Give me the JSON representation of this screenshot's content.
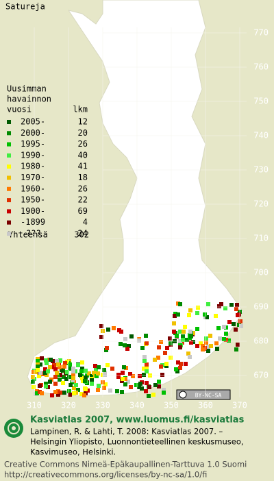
{
  "title": "Satureja",
  "legend": {
    "header": [
      "Uusimman",
      "havainnon",
      "vuosi"
    ],
    "count_header": "lkm",
    "rows": [
      {
        "label": "2005-",
        "count": 12,
        "color": "#005a00"
      },
      {
        "label": "2000-",
        "count": 20,
        "color": "#008a00"
      },
      {
        "label": "1995-",
        "count": 26,
        "color": "#00c000"
      },
      {
        "label": "1990-",
        "count": 40,
        "color": "#40ee40"
      },
      {
        "label": "1980-",
        "count": 41,
        "color": "#ffff00"
      },
      {
        "label": "1970-",
        "count": 18,
        "color": "#f0c000"
      },
      {
        "label": "1960-",
        "count": 26,
        "color": "#ff7a00"
      },
      {
        "label": "1950-",
        "count": 22,
        "color": "#e03000"
      },
      {
        "label": "1900-",
        "count": 69,
        "color": "#c80000"
      },
      {
        "label": "-1899",
        "count": 4,
        "color": "#7a0000"
      },
      {
        "label": "???",
        "count": 24,
        "color": "#c8c8c8"
      }
    ],
    "total_label": "Yhteensä",
    "total": 302
  },
  "map": {
    "yticks": [
      770,
      760,
      750,
      740,
      730,
      720,
      710,
      700,
      690,
      680,
      670
    ],
    "xticks": [
      310,
      320,
      330,
      340,
      350,
      360,
      370
    ]
  },
  "badge": "BY-NC-SA",
  "footer": {
    "heading": "Kasviatlas 2007, www.luomus.fi/kasviatlas",
    "citation": [
      "Lampinen, R. & Lahti, T. 2008: Kasviatlas 2007. –",
      "Helsingin Yliopisto, Luonnontieteellinen keskusmuseo,",
      "Kasvimuseo, Helsinki."
    ],
    "license": [
      "Creative Commons Nimeä-Epäkaupallinen-Tarttuva 1.0 Suomi",
      "http://creativecommons.org/licenses/by-nc-sa/1.0/fi"
    ]
  }
}
